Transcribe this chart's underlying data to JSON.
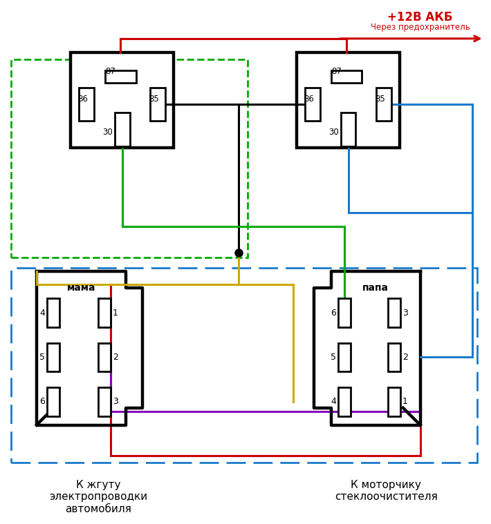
{
  "title": "+12В АКБ",
  "subtitle": "Через предохранитель",
  "label_mama": "мама",
  "label_papa": "папа",
  "label_left": "К жгуту\nэлектропроводки\nавтомобиля",
  "label_right": "К моторчику\nстеклоочистителя",
  "colors": {
    "red": "#cc0000",
    "green": "#00aa00",
    "blue": "#1a7acc",
    "yellow": "#ccaa00",
    "purple": "#8800bb",
    "black": "#000000"
  }
}
